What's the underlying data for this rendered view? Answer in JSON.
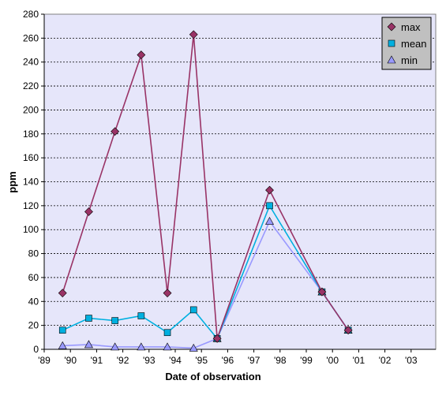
{
  "chart_data": {
    "type": "line",
    "xlabel": "Date of observation",
    "ylabel": "ppm",
    "ylim": [
      0,
      280
    ],
    "y_ticks": [
      "0",
      "20",
      "40",
      "60",
      "80",
      "100",
      "120",
      "140",
      "160",
      "180",
      "200",
      "220",
      "240",
      "260",
      "280"
    ],
    "x_ticks": [
      "'89",
      "'90",
      "'91",
      "'92",
      "'93",
      "'94",
      "'95",
      "'96",
      "'97",
      "'98",
      "'99",
      "'00",
      "'01",
      "'02",
      "'03"
    ],
    "grid": "horizontal dashed",
    "legend_position": "top-right",
    "plot_background": "#e6e6fa",
    "x": [
      1989.7,
      1990.7,
      1991.7,
      1992.7,
      1993.7,
      1994.7,
      1995.6,
      1997.6,
      1999.6,
      2000.6
    ],
    "series": [
      {
        "name": "max",
        "color": "#993366",
        "marker": "diamond",
        "values": [
          47,
          115,
          182,
          246,
          47,
          263,
          9,
          133,
          48,
          16
        ]
      },
      {
        "name": "mean",
        "color": "#00b0e0",
        "marker": "square",
        "values": [
          16,
          26,
          24,
          28,
          14,
          33,
          9,
          120,
          48,
          16
        ]
      },
      {
        "name": "min",
        "color": "#9999ff",
        "marker": "triangle",
        "values": [
          3,
          4,
          2,
          2,
          2,
          1,
          9,
          107,
          48,
          16
        ]
      }
    ]
  }
}
